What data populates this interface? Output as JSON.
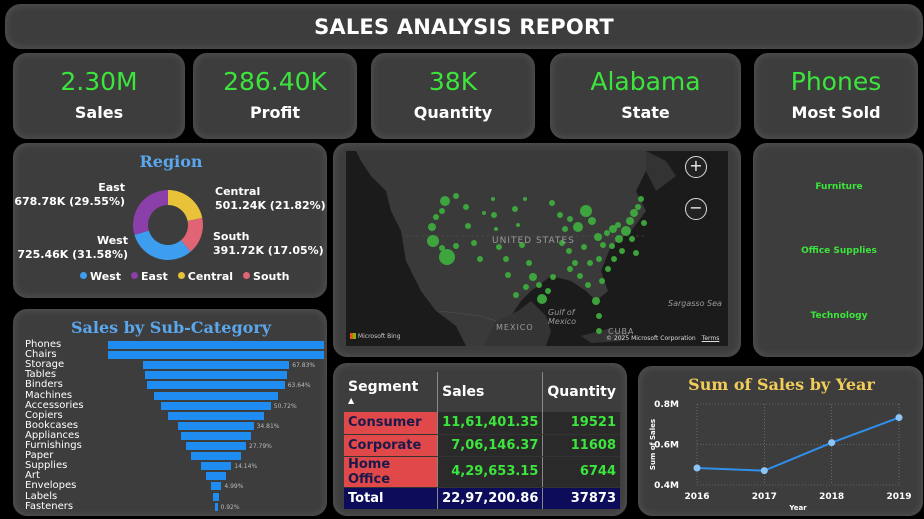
{
  "header": {
    "title": "SALES ANALYSIS REPORT"
  },
  "kpis": [
    {
      "value": "2.30M",
      "label": "Sales"
    },
    {
      "value": "286.40K",
      "label": "Profit"
    },
    {
      "value": "38K",
      "label": "Quantity"
    },
    {
      "value": "Alabama",
      "label": "State"
    },
    {
      "value": "Phones",
      "label": "Most Sold"
    }
  ],
  "region": {
    "title": "Region",
    "segments": [
      {
        "name": "West",
        "display": "725.46K (31.58%)",
        "share": 31.58,
        "color": "#3d9ef0"
      },
      {
        "name": "East",
        "display": "678.78K (29.55%)",
        "share": 29.55,
        "color": "#8b3fa8"
      },
      {
        "name": "Central",
        "display": "501.24K (21.82%)",
        "share": 21.82,
        "color": "#e8c33a"
      },
      {
        "name": "South",
        "display": "391.72K (17.05%)",
        "share": 17.05,
        "color": "#e06474"
      }
    ]
  },
  "map": {
    "country_label": "UNITED STATES",
    "mexico_label": "MEXICO",
    "gulf_label": "Gulf of Mexico",
    "cuba_label": "CUBA",
    "sargasso_label": "Sargasso Sea",
    "attribution": "© 2025 Microsoft Corporation",
    "terms": "Terms",
    "bing": "Microsoft Bing",
    "zoom_in": "+",
    "zoom_out": "−"
  },
  "categories": [
    "Furniture",
    "Office Supplies",
    "Technology"
  ],
  "subcategory": {
    "title": "Sales by Sub-Category",
    "items": [
      {
        "name": "Phones",
        "value": 100,
        "pct": ""
      },
      {
        "name": "Chairs",
        "value": 100,
        "pct": ""
      },
      {
        "name": "Storage",
        "value": 67.83,
        "pct": "67.83%"
      },
      {
        "name": "Tables",
        "value": 66,
        "pct": ""
      },
      {
        "name": "Binders",
        "value": 63.64,
        "pct": "63.64%"
      },
      {
        "name": "Machines",
        "value": 57,
        "pct": ""
      },
      {
        "name": "Accessories",
        "value": 50.72,
        "pct": "50.72%"
      },
      {
        "name": "Copiers",
        "value": 44,
        "pct": ""
      },
      {
        "name": "Bookcases",
        "value": 34.81,
        "pct": "34.81%"
      },
      {
        "name": "Appliances",
        "value": 32,
        "pct": ""
      },
      {
        "name": "Furnishings",
        "value": 27.79,
        "pct": "27.79%"
      },
      {
        "name": "Paper",
        "value": 23,
        "pct": ""
      },
      {
        "name": "Supplies",
        "value": 14.14,
        "pct": "14.14%"
      },
      {
        "name": "Art",
        "value": 9,
        "pct": ""
      },
      {
        "name": "Envelopes",
        "value": 4.99,
        "pct": "4.99%"
      },
      {
        "name": "Labels",
        "value": 3,
        "pct": ""
      },
      {
        "name": "Fasteners",
        "value": 0.92,
        "pct": "0.92%"
      }
    ]
  },
  "table": {
    "headers": [
      "Segment",
      "Sales",
      "Quantity"
    ],
    "rows": [
      {
        "segment": "Consumer",
        "sales": "11,61,401.35",
        "quantity": "19521"
      },
      {
        "segment": "Corporate",
        "sales": "7,06,146.37",
        "quantity": "11608"
      },
      {
        "segment": "Home Office",
        "sales": "4,29,653.15",
        "quantity": "6744"
      }
    ],
    "total": {
      "segment": "Total",
      "sales": "22,97,200.86",
      "quantity": "37873"
    }
  },
  "chart_data": {
    "type": "line",
    "title": "Sum of Sales by Year",
    "xlabel": "Year",
    "ylabel": "Sum of Sales",
    "x": [
      "2016",
      "2017",
      "2018",
      "2019"
    ],
    "series": [
      {
        "values": [
          0.484,
          0.471,
          0.609,
          0.733
        ]
      }
    ],
    "ylim": [
      0.4,
      0.8
    ],
    "yticks": [
      "0.4M",
      "0.6M",
      "0.8M"
    ],
    "color": "#2f8fea",
    "grid": true
  }
}
